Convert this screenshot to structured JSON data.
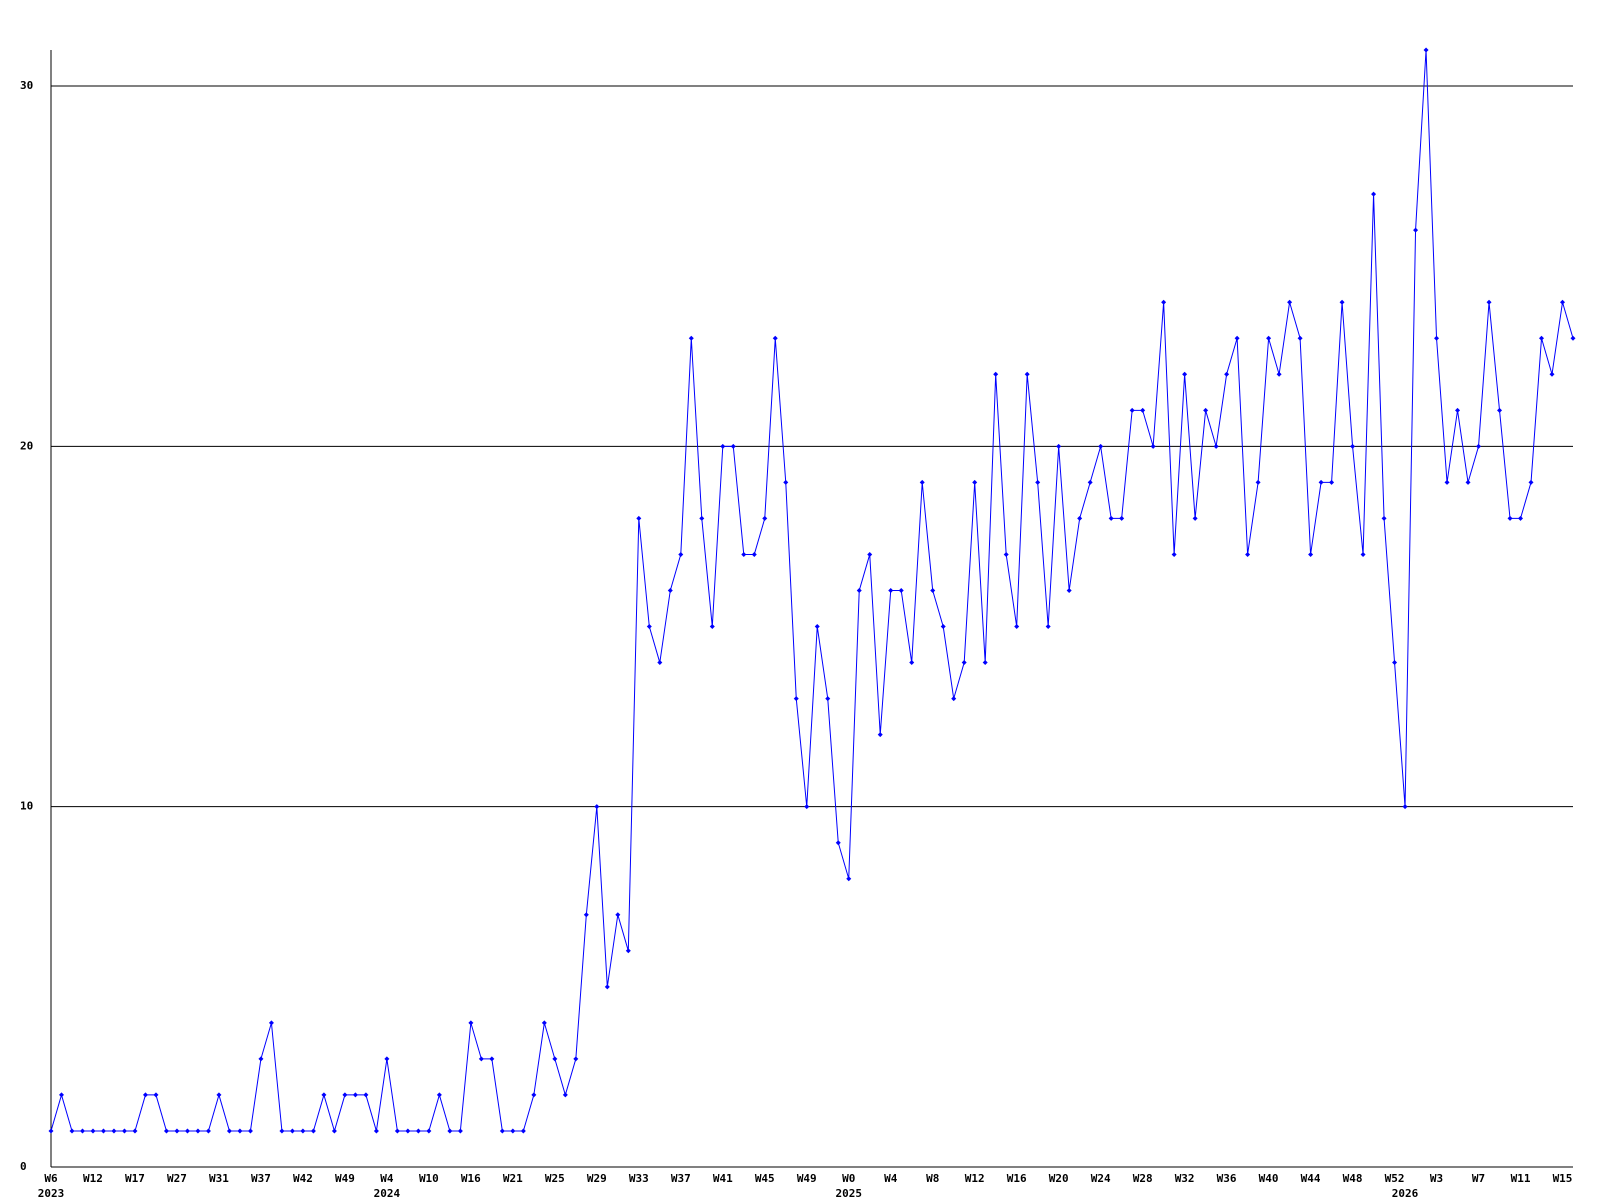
{
  "chart_data": {
    "type": "line",
    "categories": [
      "W6",
      null,
      null,
      null,
      "W12",
      null,
      null,
      null,
      "W17",
      null,
      null,
      null,
      "W27",
      null,
      null,
      null,
      "W31",
      null,
      null,
      null,
      "W37",
      null,
      null,
      null,
      "W42",
      null,
      null,
      null,
      "W49",
      null,
      null,
      null,
      "W4",
      null,
      null,
      null,
      "W10",
      null,
      null,
      null,
      "W16",
      null,
      null,
      null,
      "W21",
      null,
      null,
      null,
      "W25",
      null,
      null,
      null,
      "W29",
      null,
      null,
      null,
      "W33",
      null,
      null,
      null,
      "W37",
      null,
      null,
      null,
      "W41",
      null,
      null,
      null,
      "W45",
      null,
      null,
      null,
      "W49",
      null,
      null,
      null,
      "W0",
      null,
      null,
      null,
      "W4",
      null,
      null,
      null,
      "W8",
      null,
      null,
      null,
      "W12",
      null,
      null,
      null,
      "W16",
      null,
      null,
      null,
      "W20",
      null,
      null,
      null,
      "W24",
      null,
      null,
      null,
      "W28",
      null,
      null,
      null,
      "W32",
      null,
      null,
      null,
      "W36",
      null,
      null,
      null,
      "W40",
      null,
      null,
      null,
      "W44",
      null,
      null,
      null,
      "W48",
      null,
      null,
      null,
      "W52",
      null,
      null,
      null,
      "W3",
      null,
      null,
      null,
      "W7",
      null,
      null,
      null,
      "W11",
      null,
      null,
      null,
      "W15",
      null
    ],
    "year_labels": [
      {
        "index": 0,
        "label": "2023"
      },
      {
        "index": 32,
        "label": "2024"
      },
      {
        "index": 76,
        "label": "2025"
      },
      {
        "index": 129,
        "label": "2026"
      }
    ],
    "series": [
      {
        "color": "#0000ff",
        "values": [
          1,
          2,
          1,
          1,
          1,
          1,
          1,
          1,
          1,
          2,
          2,
          1,
          1,
          1,
          1,
          1,
          2,
          1,
          1,
          1,
          3,
          4,
          1,
          1,
          1,
          1,
          2,
          1,
          2,
          2,
          2,
          1,
          3,
          1,
          1,
          1,
          1,
          2,
          1,
          1,
          4,
          3,
          3,
          1,
          1,
          1,
          2,
          4,
          3,
          2,
          3,
          7,
          10,
          5,
          7,
          6,
          18,
          15,
          14,
          16,
          17,
          23,
          18,
          15,
          20,
          20,
          17,
          17,
          18,
          23,
          19,
          13,
          10,
          15,
          13,
          9,
          8,
          16,
          17,
          12,
          16,
          16,
          14,
          19,
          16,
          15,
          13,
          14,
          19,
          14,
          22,
          17,
          15,
          22,
          19,
          15,
          20,
          16,
          18,
          19,
          20,
          18,
          18,
          21,
          21,
          20,
          24,
          17,
          22,
          18,
          21,
          20,
          22,
          23,
          17,
          19,
          23,
          22,
          24,
          23,
          17,
          19,
          19,
          24,
          20,
          17,
          27,
          18,
          14,
          10,
          26,
          31,
          23,
          19,
          21,
          19,
          20,
          24,
          21,
          18,
          18,
          19,
          23,
          22,
          24,
          23
        ]
      }
    ],
    "ylim": [
      0,
      31
    ],
    "yticks": [
      0,
      10,
      20,
      30
    ],
    "grid": true
  }
}
